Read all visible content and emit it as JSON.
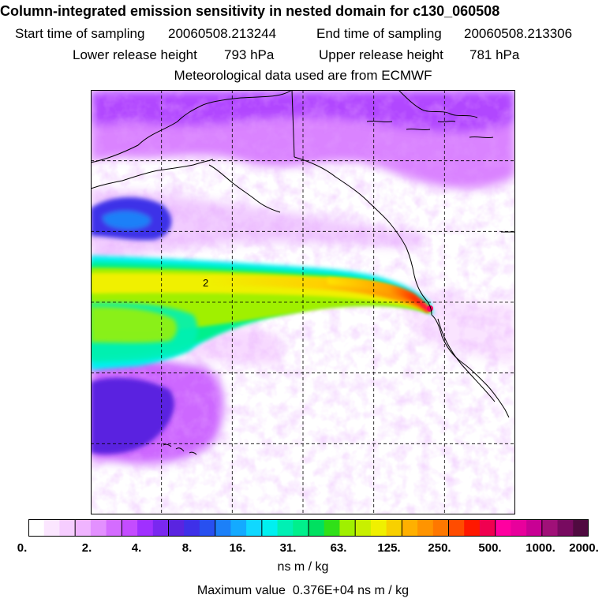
{
  "header": {
    "title": "Column-integrated emission sensitivity in nested domain for c130_060508",
    "start_label": "Start time of sampling",
    "start_value": "20060508.213244",
    "end_label": "End time of sampling",
    "end_value": "20060508.213306",
    "lower_label": "Lower release height",
    "lower_value": "793 hPa",
    "upper_label": "Upper release height",
    "upper_value": "781 hPa",
    "met_note": "Meteorological data used are from ECMWF"
  },
  "map": {
    "plume_label": "2",
    "colors": {
      "frame": "#000000",
      "grid": "#000000",
      "coast": "#000000"
    }
  },
  "colorbar": {
    "colors": [
      "#ffffff",
      "#fbe6ff",
      "#f6cdff",
      "#f0b4ff",
      "#e390ff",
      "#d46cff",
      "#c44cff",
      "#a030ff",
      "#7a28f0",
      "#5a24e0",
      "#3e30e8",
      "#2850f0",
      "#1c80f8",
      "#14aaff",
      "#10d8ff",
      "#00f0f0",
      "#00f0b4",
      "#00f08c",
      "#00e060",
      "#30e018",
      "#a0f000",
      "#c8f000",
      "#f0f000",
      "#f8d000",
      "#ffb000",
      "#ff9400",
      "#ff7800",
      "#ff4c00",
      "#ff1800",
      "#f00050",
      "#ff00a0",
      "#e8009c",
      "#c80094",
      "#a01078",
      "#780a60",
      "#500a40"
    ],
    "ticks": [
      "0.",
      "2.",
      "4.",
      "8.",
      "16.",
      "31.",
      "63.",
      "125.",
      "250.",
      "500.",
      "1000.",
      "2000."
    ],
    "units": "ns m / kg"
  },
  "max": {
    "label": "Maximum value",
    "value": "0.376E+04",
    "units": "ns m / kg"
  }
}
